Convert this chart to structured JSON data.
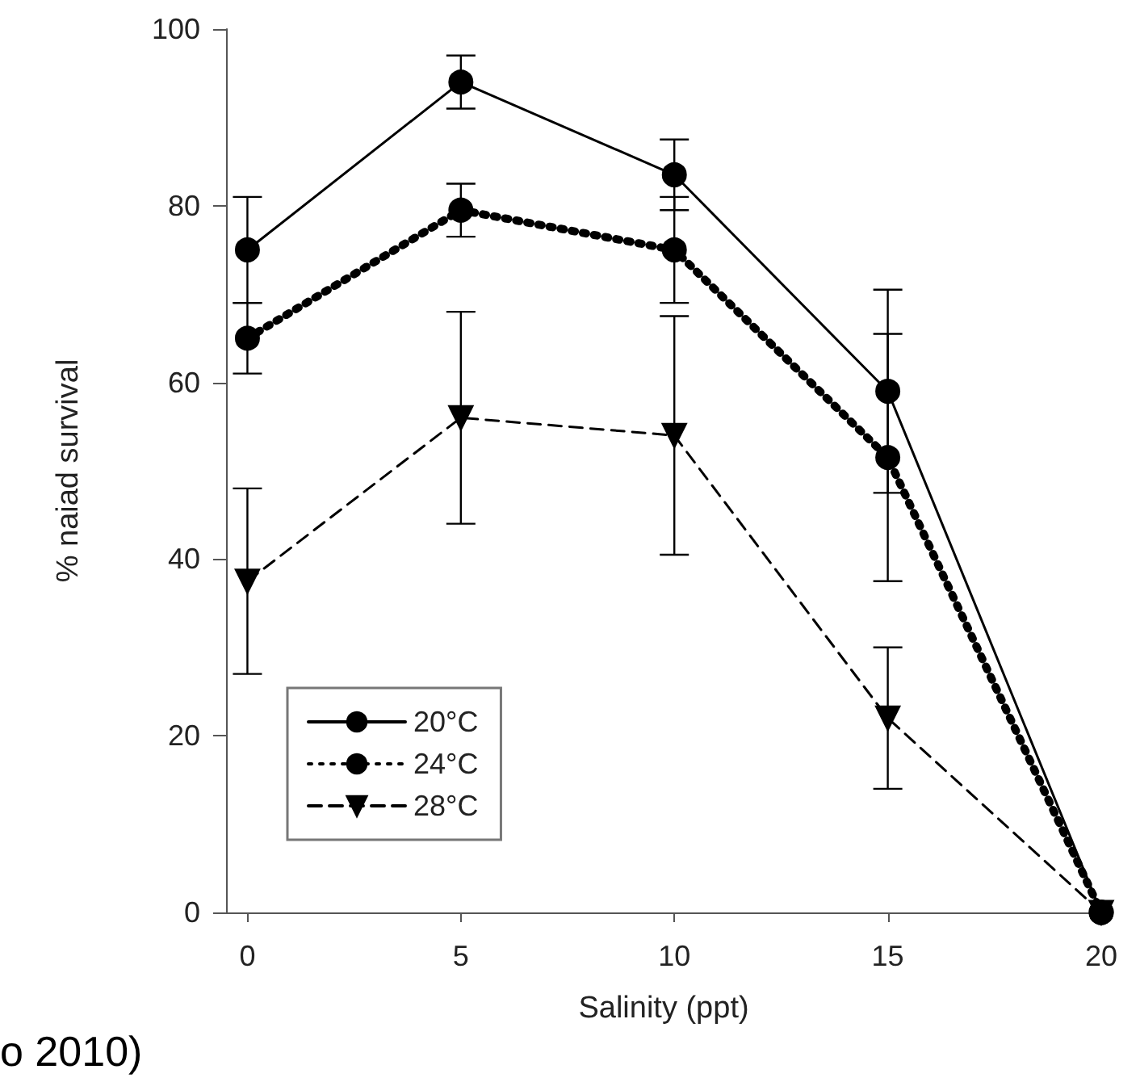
{
  "chart_data": {
    "type": "line",
    "xlabel": "Salinity (ppt)",
    "ylabel": "% naiad survival",
    "x": [
      0,
      5,
      10,
      15,
      20
    ],
    "xlim": [
      -0.5,
      20
    ],
    "xticks": [
      0,
      5,
      10,
      15,
      20
    ],
    "ylim": [
      0,
      100
    ],
    "yticks": [
      0,
      20,
      40,
      60,
      80,
      100
    ],
    "grid": false,
    "legend": "bottom left",
    "series": [
      {
        "name": "20°C",
        "color": "#000000",
        "marker": "circle",
        "line_style": "solid",
        "values": [
          75,
          94,
          83.5,
          59,
          0
        ],
        "errors": [
          6,
          3,
          4,
          11.5,
          null
        ]
      },
      {
        "name": "24°C",
        "color": "#000000",
        "marker": "circle",
        "line_style": "dotted",
        "values": [
          65,
          79.5,
          75,
          51.5,
          0
        ],
        "errors": [
          4,
          3,
          6,
          14,
          null
        ]
      },
      {
        "name": "28°C",
        "color": "#000000",
        "marker": "triangle",
        "line_style": "dashed",
        "values": [
          37.5,
          56,
          54,
          22,
          0
        ],
        "errors": [
          10.5,
          12,
          13.5,
          8,
          null
        ]
      }
    ],
    "annotations": [
      "o 2010)"
    ]
  }
}
